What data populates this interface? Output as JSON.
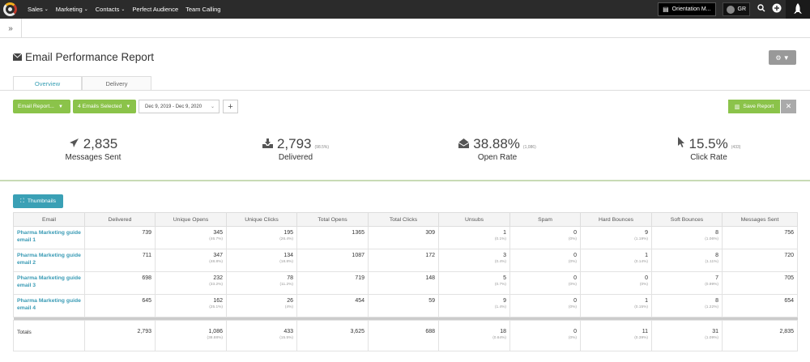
{
  "nav": {
    "items": [
      {
        "label": "Sales",
        "caret": true
      },
      {
        "label": "Marketing",
        "caret": true
      },
      {
        "label": "Contacts",
        "caret": true
      },
      {
        "label": "Perfect Audience",
        "caret": false
      },
      {
        "label": "Team Calling",
        "caret": false
      }
    ],
    "orientation_label": "Orientation M...",
    "user_initials": "GR"
  },
  "page": {
    "title": "Email Performance Report",
    "tabs": [
      "Overview",
      "Delivery"
    ],
    "filters": {
      "report_label": "Email Report...",
      "emails_label": "4 Emails Selected",
      "date_range": "Dec 9, 2019 - Dec 9, 2020",
      "save_label": "Save Report"
    }
  },
  "stats": [
    {
      "icon": "paper-plane-icon",
      "value": "2,835",
      "pct": "",
      "label": "Messages Sent"
    },
    {
      "icon": "inbox-download-icon",
      "value": "2,793",
      "pct": "(98.5%)",
      "label": "Delivered"
    },
    {
      "icon": "open-envelope-icon",
      "value": "38.88%",
      "pct": "(1,086)",
      "label": "Open Rate"
    },
    {
      "icon": "cursor-icon",
      "value": "15.5%",
      "pct": "(433)",
      "label": "Click Rate"
    }
  ],
  "thumbnails_label": "Thumbnails",
  "table": {
    "headers": [
      "Email",
      "Delivered",
      "Unique Opens",
      "Unique Clicks",
      "Total Opens",
      "Total Clicks",
      "Unsubs",
      "Spam",
      "Hard Bounces",
      "Soft Bounces",
      "Messages Sent"
    ],
    "rows": [
      {
        "email": "Pharma Marketing guide email 1",
        "delivered": "739",
        "unique_opens": "345",
        "unique_opens_pct": "(46.7%)",
        "unique_clicks": "195",
        "unique_clicks_pct": "(26.4%)",
        "total_opens": "1365",
        "total_clicks": "309",
        "unsubs": "1",
        "unsubs_pct": "(0.1%)",
        "spam": "0",
        "spam_pct": "(0%)",
        "hard_bounces": "9",
        "hard_bounces_pct": "(1.19%)",
        "soft_bounces": "8",
        "soft_bounces_pct": "(1.06%)",
        "messages_sent": "756"
      },
      {
        "email": "Pharma Marketing guide email 2",
        "delivered": "711",
        "unique_opens": "347",
        "unique_opens_pct": "(48.8%)",
        "unique_clicks": "134",
        "unique_clicks_pct": "(18.8%)",
        "total_opens": "1087",
        "total_clicks": "172",
        "unsubs": "3",
        "unsubs_pct": "(0.4%)",
        "spam": "0",
        "spam_pct": "(0%)",
        "hard_bounces": "1",
        "hard_bounces_pct": "(0.14%)",
        "soft_bounces": "8",
        "soft_bounces_pct": "(1.11%)",
        "messages_sent": "720"
      },
      {
        "email": "Pharma Marketing guide email 3",
        "delivered": "698",
        "unique_opens": "232",
        "unique_opens_pct": "(33.2%)",
        "unique_clicks": "78",
        "unique_clicks_pct": "(11.2%)",
        "total_opens": "719",
        "total_clicks": "148",
        "unsubs": "5",
        "unsubs_pct": "(0.7%)",
        "spam": "0",
        "spam_pct": "(0%)",
        "hard_bounces": "0",
        "hard_bounces_pct": "(0%)",
        "soft_bounces": "7",
        "soft_bounces_pct": "(0.99%)",
        "messages_sent": "705"
      },
      {
        "email": "Pharma Marketing guide email 4",
        "delivered": "645",
        "unique_opens": "162",
        "unique_opens_pct": "(25.1%)",
        "unique_clicks": "26",
        "unique_clicks_pct": "(4%)",
        "total_opens": "454",
        "total_clicks": "59",
        "unsubs": "9",
        "unsubs_pct": "(1.4%)",
        "spam": "0",
        "spam_pct": "(0%)",
        "hard_bounces": "1",
        "hard_bounces_pct": "(0.15%)",
        "soft_bounces": "8",
        "soft_bounces_pct": "(1.22%)",
        "messages_sent": "654"
      }
    ],
    "totals": {
      "label": "Totals",
      "delivered": "2,793",
      "unique_opens": "1,086",
      "unique_opens_pct": "(38.88%)",
      "unique_clicks": "433",
      "unique_clicks_pct": "(15.5%)",
      "total_opens": "3,625",
      "total_clicks": "688",
      "unsubs": "18",
      "unsubs_pct": "(0.64%)",
      "spam": "0",
      "spam_pct": "(0%)",
      "hard_bounces": "11",
      "hard_bounces_pct": "(0.39%)",
      "soft_bounces": "31",
      "soft_bounces_pct": "(1.09%)",
      "messages_sent": "2,835"
    }
  },
  "colors": {
    "accent_green": "#8bc34a",
    "accent_teal": "#3aa0b5",
    "nav_bg": "#2b2b2b"
  }
}
